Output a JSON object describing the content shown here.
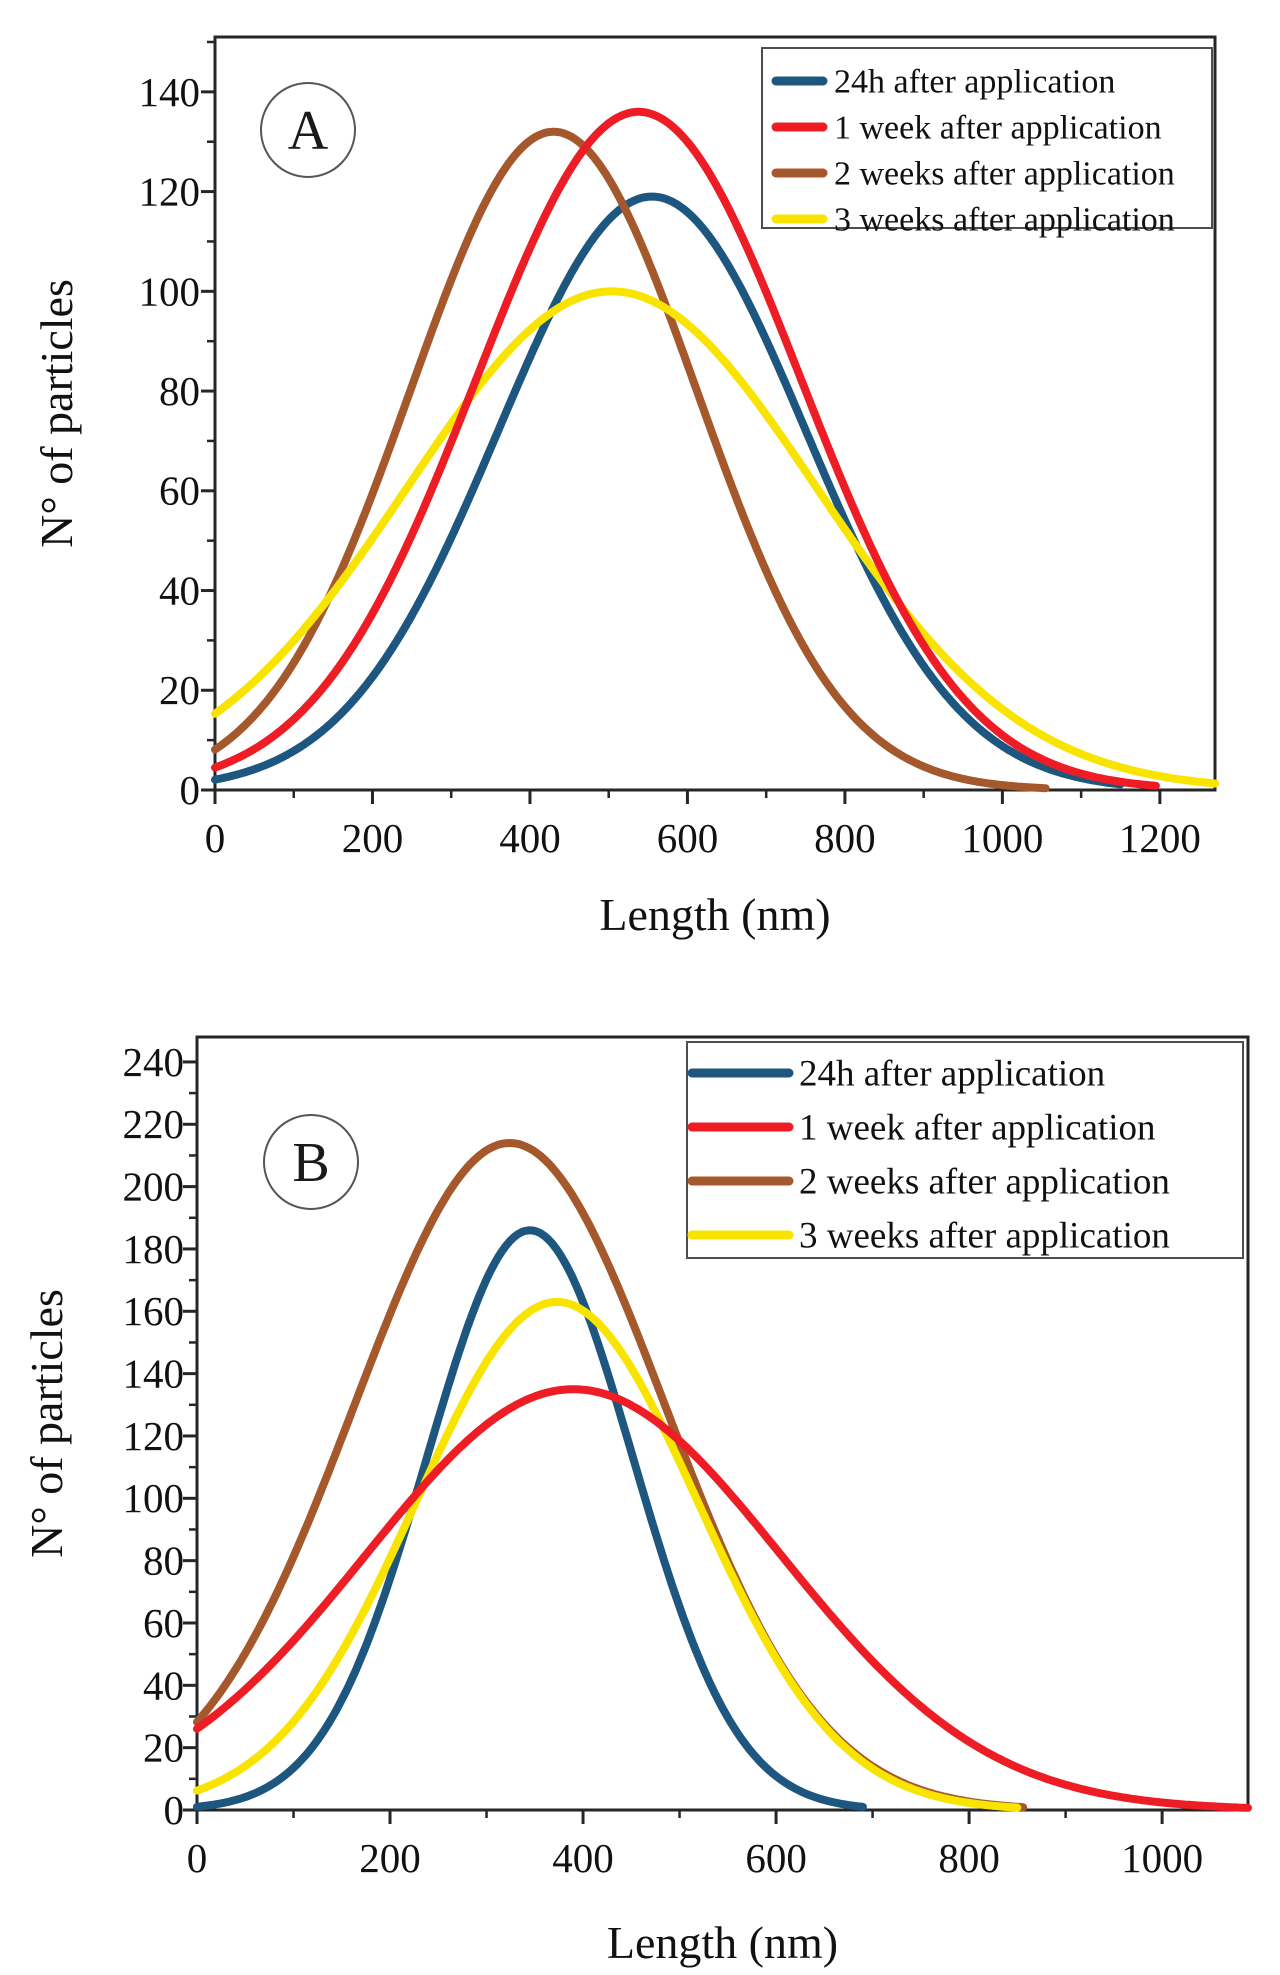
{
  "figure": {
    "background": "#ffffff",
    "colors": {
      "blue": "#1d567f",
      "red": "#ee1c25",
      "brown": "#a4582b",
      "yellow": "#f9e400",
      "frame": "#262626",
      "text": "#111111",
      "legend_border": "#4d4d4d",
      "circle_border": "#555555"
    },
    "panels": [
      {
        "panel_label": "A",
        "x_axis": {
          "title": "Length (nm)",
          "ticks": [
            0,
            200,
            400,
            600,
            800,
            1000,
            1200
          ],
          "range": [
            0,
            1270
          ],
          "minor_step": 100
        },
        "y_axis": {
          "title": "N° of particles",
          "ticks": [
            0,
            20,
            40,
            60,
            80,
            100,
            120,
            140
          ],
          "range": [
            0,
            151
          ],
          "minor_step": 10
        },
        "legend": {
          "position": "top-right",
          "entries": [
            {
              "label": "24h after application",
              "color_key": "blue"
            },
            {
              "label": "1 week after application",
              "color_key": "red"
            },
            {
              "label": "2 weeks after application",
              "color_key": "brown"
            },
            {
              "label": "3 weeks after application",
              "color_key": "yellow"
            }
          ]
        },
        "chart_data": {
          "type": "line",
          "x_unit": "nm",
          "curve_model": "gaussian",
          "series": [
            {
              "name": "24h after application",
              "color_key": "blue",
              "peak_x_nm": 555,
              "peak_y_particles": 119,
              "sigma_nm": 195,
              "value_at_0": 2,
              "x_start_nm": 0,
              "x_end_nm": 1150,
              "z": 0
            },
            {
              "name": "1 week after application",
              "color_key": "red",
              "peak_x_nm": 538,
              "peak_y_particles": 136,
              "sigma_nm": 206,
              "value_at_0": 4,
              "x_start_nm": 0,
              "x_end_nm": 1195,
              "z": 3
            },
            {
              "name": "2 weeks after application",
              "color_key": "brown",
              "peak_x_nm": 430,
              "peak_y_particles": 132,
              "sigma_nm": 182,
              "value_at_0": 8,
              "x_start_nm": 0,
              "x_end_nm": 1055,
              "z": 1
            },
            {
              "name": "3 weeks after application",
              "color_key": "yellow",
              "peak_x_nm": 504,
              "peak_y_particles": 100,
              "sigma_nm": 260,
              "value_at_0": 15,
              "x_start_nm": 0,
              "x_end_nm": 1270,
              "z": 2
            }
          ]
        }
      },
      {
        "panel_label": "B",
        "x_axis": {
          "title": "Length (nm)",
          "ticks": [
            0,
            200,
            400,
            600,
            800,
            1000
          ],
          "range": [
            0,
            1089
          ],
          "minor_step": 100
        },
        "y_axis": {
          "title": "N° of particles",
          "ticks": [
            0,
            20,
            40,
            60,
            80,
            100,
            120,
            140,
            160,
            180,
            200,
            220,
            240
          ],
          "range": [
            0,
            248
          ],
          "minor_step": 10
        },
        "legend": {
          "position": "top-right",
          "entries": [
            {
              "label": "24h after application",
              "color_key": "blue"
            },
            {
              "label": "1 week after application",
              "color_key": "red"
            },
            {
              "label": "2 weeks after application",
              "color_key": "brown"
            },
            {
              "label": "3 weeks after application",
              "color_key": "yellow"
            }
          ]
        },
        "chart_data": {
          "type": "line",
          "x_unit": "nm",
          "curve_model": "gaussian",
          "series": [
            {
              "name": "24h after application",
              "color_key": "blue",
              "peak_x_nm": 345,
              "peak_y_particles": 186,
              "sigma_nm": 107,
              "value_at_0": 1,
              "x_start_nm": 0,
              "x_end_nm": 690,
              "z": 0
            },
            {
              "name": "1 week after application",
              "color_key": "red",
              "peak_x_nm": 390,
              "peak_y_particles": 135,
              "sigma_nm": 215,
              "value_at_0": 24,
              "x_start_nm": 0,
              "x_end_nm": 1089,
              "z": 3
            },
            {
              "name": "2 weeks after application",
              "color_key": "brown",
              "peak_x_nm": 324,
              "peak_y_particles": 214,
              "sigma_nm": 161,
              "value_at_0": 29,
              "x_start_nm": 0,
              "x_end_nm": 856,
              "z": 1
            },
            {
              "name": "3 weeks after application",
              "color_key": "yellow",
              "peak_x_nm": 373,
              "peak_y_particles": 163,
              "sigma_nm": 146,
              "value_at_0": 6,
              "x_start_nm": 0,
              "x_end_nm": 850,
              "z": 2
            }
          ]
        }
      }
    ]
  }
}
